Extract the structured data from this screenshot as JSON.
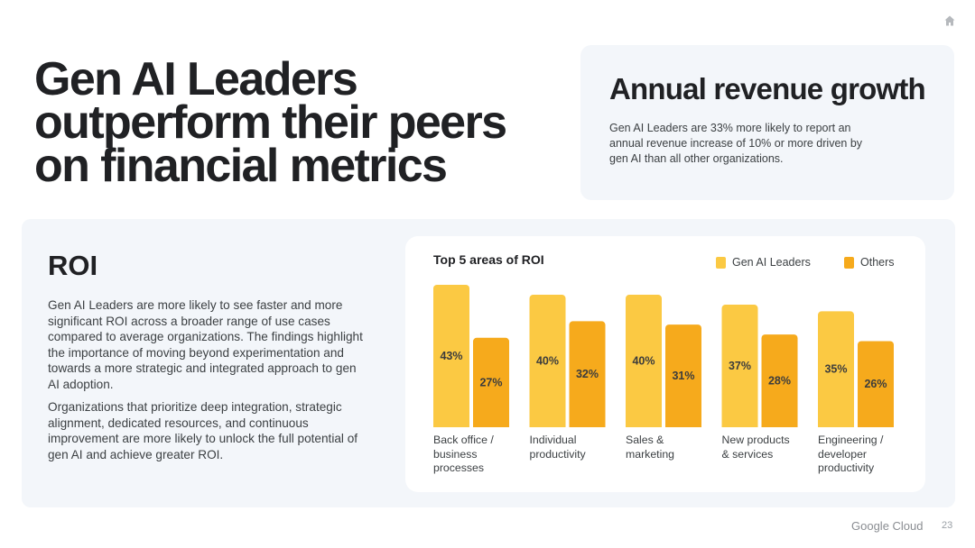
{
  "title_lines": [
    "Gen AI Leaders",
    "outperform their peers",
    "on financial metrics"
  ],
  "revenue": {
    "title": "Annual revenue growth",
    "text": "Gen AI Leaders are 33% more likely to report an annual revenue increase of 10% or more driven by gen AI than all other organizations."
  },
  "roi": {
    "title": "ROI",
    "para1": "Gen AI Leaders are more likely to see faster and more significant ROI across a broader range of use cases compared to average organizations. The findings highlight the importance of moving beyond experimentation and towards a more strategic and integrated approach to gen AI adoption.",
    "para2": "Organizations that prioritize deep integration, strategic alignment, dedicated resources, and continuous improvement are more likely to unlock the full potential of gen AI and achieve greater ROI."
  },
  "chart_data": {
    "type": "bar",
    "title": "Top 5 areas of ROI",
    "categories": [
      "Back office / business processes",
      "Individual productivity",
      "Sales & marketing",
      "New products & services",
      "Engineering / developer productivity"
    ],
    "series": [
      {
        "name": "Gen AI Leaders",
        "values": [
          43,
          40,
          40,
          37,
          35
        ],
        "labels": [
          "43%",
          "40%",
          "40%",
          "37%",
          "35%"
        ],
        "color": "#fbc943"
      },
      {
        "name": "Others",
        "values": [
          27,
          32,
          31,
          28,
          26
        ],
        "labels": [
          "27%",
          "32%",
          "31%",
          "28%",
          "26%"
        ],
        "color": "#f6aa1c"
      }
    ],
    "ylim": [
      0,
      43
    ],
    "legend": "top-right",
    "grid": false
  },
  "icons": {
    "home": "home-icon"
  },
  "footer": {
    "brand": "Google Cloud",
    "page": "23"
  }
}
